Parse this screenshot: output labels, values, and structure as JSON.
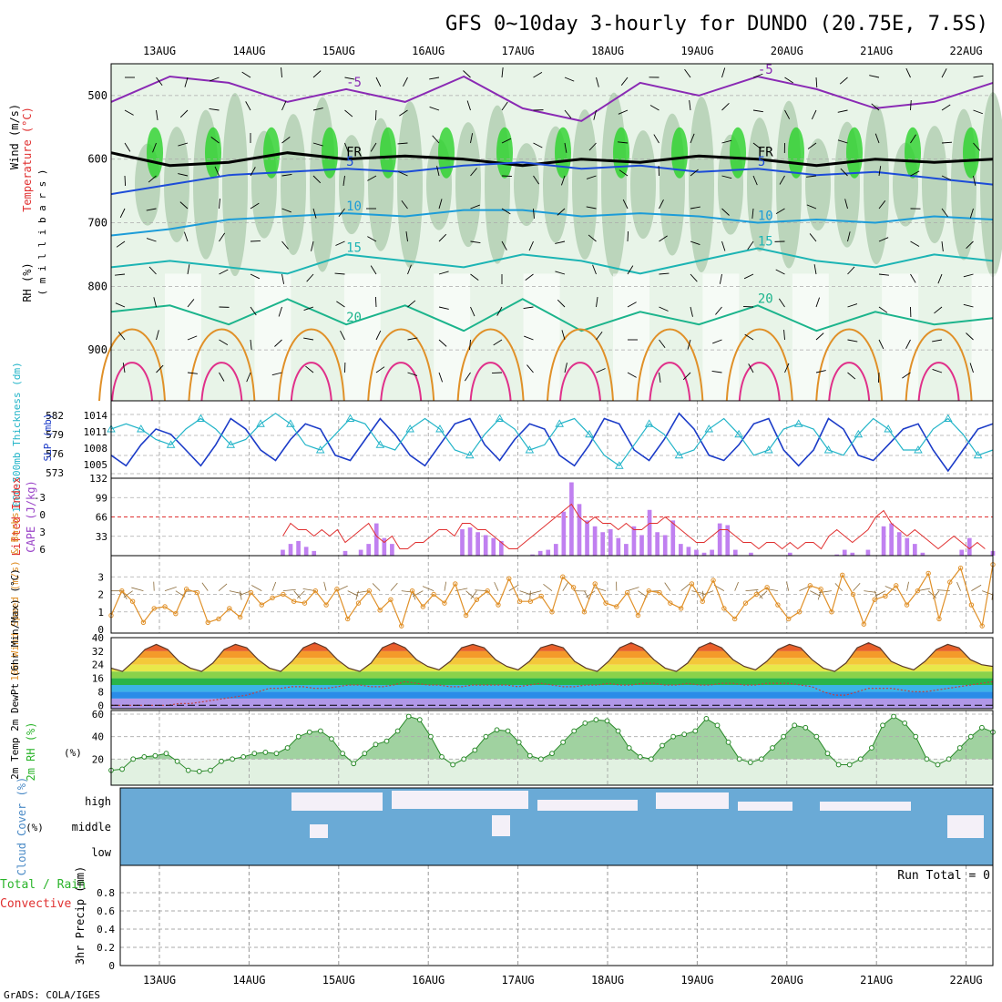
{
  "title": "GFS 0~10day 3-hourly for DUNDO (20.75E, 7.5S)",
  "credit": "GrADS: COLA/IGES",
  "dates": [
    "13AUG",
    "14AUG",
    "15AUG",
    "16AUG",
    "17AUG",
    "18AUG",
    "19AUG",
    "20AUG",
    "21AUG",
    "22AUG"
  ],
  "colors": {
    "purple": "#9a44c8",
    "red": "#e03030",
    "green": "#2ab42a",
    "orange": "#e09028",
    "cyan": "#22b4c8",
    "blue": "#1c3cc8",
    "cloud": "#6aaad6",
    "brown": "#8b6b3a",
    "black": "#000000"
  },
  "chart_data": [
    {
      "type": "contour",
      "name": "upper",
      "legend": {
        "rh": "RH (%)",
        "temp": "Temperature (°C)",
        "wind": "Wind (m/s)",
        "unit": "( m i l l i b a r s )"
      },
      "ylabel": "millibars",
      "ylim": [
        980,
        450
      ],
      "yticks": [
        500,
        600,
        700,
        800,
        900
      ],
      "isotherms": [
        {
          "label": "-5",
          "color": "#8a2ab4",
          "p": [
            510,
            470,
            480,
            510,
            490,
            510,
            470,
            520,
            540,
            480,
            500,
            470,
            490,
            520,
            510,
            480
          ]
        },
        {
          "label": "FR",
          "color": "#000000",
          "p": [
            590,
            610,
            605,
            590,
            600,
            595,
            600,
            610,
            600,
            605,
            595,
            600,
            610,
            600,
            605,
            600
          ]
        },
        {
          "label": "5",
          "color": "#1c4cd8",
          "p": [
            655,
            640,
            625,
            620,
            615,
            620,
            610,
            605,
            615,
            610,
            620,
            615,
            625,
            620,
            630,
            640
          ]
        },
        {
          "label": "10",
          "color": "#1c9cd8",
          "p": [
            720,
            710,
            695,
            690,
            685,
            690,
            680,
            680,
            690,
            685,
            690,
            700,
            695,
            700,
            690,
            695
          ]
        },
        {
          "label": "15",
          "color": "#1cb4b4",
          "p": [
            770,
            760,
            770,
            780,
            750,
            760,
            770,
            750,
            760,
            780,
            760,
            740,
            760,
            770,
            750,
            760
          ]
        },
        {
          "label": "20",
          "color": "#1cb48c",
          "p": [
            840,
            830,
            860,
            820,
            860,
            830,
            870,
            820,
            870,
            840,
            860,
            830,
            870,
            840,
            860,
            850
          ]
        }
      ],
      "isotherm_labels": [
        "-5",
        "-5",
        "-5",
        "FR",
        "FR",
        "5",
        "5",
        "10",
        "10",
        "15",
        "15",
        "20",
        "20"
      ]
    },
    {
      "type": "line",
      "name": "slp-thickness",
      "ylabel_left": "1000-500mb Thickness (dm)",
      "ylabel_right": "SLP (mb)",
      "left_ticks": [
        "582",
        "579",
        "576",
        "573"
      ],
      "right_ticks": [
        "1014",
        "1011",
        "1008",
        "1005"
      ],
      "ylim": [
        1004,
        1016
      ],
      "series": [
        {
          "name": "SLP",
          "values": [
            1007,
            1005,
            1009,
            1012,
            1011,
            1008,
            1005,
            1009,
            1014,
            1012,
            1008,
            1006,
            1010,
            1013,
            1012,
            1007,
            1006,
            1010,
            1014,
            1011,
            1007,
            1005,
            1009,
            1013,
            1014,
            1009,
            1006,
            1010,
            1013,
            1012,
            1007,
            1005,
            1009,
            1014,
            1013,
            1008,
            1006,
            1010,
            1015,
            1012,
            1007,
            1006,
            1009,
            1013,
            1014,
            1008,
            1005,
            1008,
            1014,
            1012,
            1007,
            1006,
            1009,
            1012,
            1013,
            1008,
            1004,
            1008,
            1012,
            1013
          ]
        },
        {
          "name": "Thickness",
          "values": [
            1012,
            1013,
            1012,
            1010,
            1009,
            1012,
            1014,
            1012,
            1009,
            1010,
            1013,
            1015,
            1013,
            1009,
            1008,
            1011,
            1014,
            1013,
            1009,
            1008,
            1012,
            1014,
            1012,
            1008,
            1007,
            1011,
            1014,
            1012,
            1008,
            1009,
            1013,
            1014,
            1011,
            1007,
            1005,
            1009,
            1013,
            1011,
            1007,
            1008,
            1012,
            1014,
            1011,
            1007,
            1008,
            1012,
            1013,
            1012,
            1008,
            1007,
            1011,
            1014,
            1012,
            1008,
            1008,
            1012,
            1014,
            1011,
            1007,
            1008
          ]
        }
      ]
    },
    {
      "type": "bar",
      "name": "cape-lifted",
      "ylabel_left": "Lifted Index",
      "ylabel_right": "CAPE (J/kg)",
      "left_ticks": [
        "-3",
        "0",
        "3",
        "6"
      ],
      "right_ticks": [
        "132",
        "99",
        "66",
        "33"
      ],
      "ylim": [
        0,
        132
      ],
      "values": [
        0,
        0,
        0,
        0,
        0,
        0,
        0,
        0,
        0,
        0,
        0,
        0,
        0,
        0,
        0,
        0,
        0,
        0,
        0,
        0,
        0,
        0,
        10,
        20,
        25,
        15,
        8,
        0,
        0,
        0,
        8,
        0,
        10,
        20,
        55,
        30,
        20,
        0,
        0,
        0,
        0,
        0,
        0,
        0,
        0,
        45,
        48,
        40,
        35,
        30,
        25,
        0,
        0,
        0,
        2,
        8,
        10,
        20,
        75,
        125,
        88,
        60,
        50,
        40,
        45,
        30,
        20,
        50,
        35,
        78,
        40,
        35,
        60,
        20,
        15,
        10,
        5,
        10,
        55,
        52,
        10,
        0,
        5,
        0,
        0,
        0,
        0,
        5,
        0,
        0,
        0,
        0,
        0,
        2,
        10,
        5,
        0,
        10,
        0,
        50,
        55,
        40,
        30,
        20,
        5,
        0,
        0,
        0,
        0,
        10,
        30,
        0,
        0,
        8
      ],
      "lifted_index": [
        6,
        6,
        6,
        6,
        6,
        6,
        6,
        6,
        6,
        6,
        6,
        6,
        6,
        6,
        6,
        6,
        6,
        6,
        6,
        6,
        6,
        6,
        3,
        1,
        2,
        2,
        3,
        2,
        3,
        2,
        4,
        3,
        2,
        1,
        3,
        4,
        3,
        5,
        5,
        4,
        4,
        3,
        2,
        2,
        3,
        1,
        1,
        2,
        2,
        3,
        4,
        5,
        5,
        4,
        3,
        2,
        1,
        0,
        -1,
        -2,
        0,
        1,
        0,
        1,
        1,
        2,
        1,
        2,
        2,
        1,
        1,
        0,
        1,
        2,
        3,
        4,
        4,
        3,
        2,
        2,
        3,
        4,
        4,
        5,
        4,
        4,
        5,
        4,
        5,
        4,
        4,
        5,
        3,
        2,
        3,
        4,
        3,
        2,
        0,
        -1,
        1,
        2,
        3,
        2,
        3,
        4,
        5,
        4,
        3,
        4,
        5,
        4,
        5,
        6
      ]
    },
    {
      "type": "line",
      "name": "wind10m",
      "ylabel": "10m Wind Speed (m/s) & Barbs",
      "yticks": [
        "3",
        "2",
        "1",
        "0"
      ],
      "ylim": [
        0,
        4
      ],
      "values": [
        0.8,
        2.2,
        1.6,
        0.4,
        1.2,
        1.3,
        0.9,
        2.3,
        2.1,
        0.4,
        0.6,
        1.2,
        0.7,
        2.1,
        1.4,
        1.8,
        2.0,
        1.6,
        1.5,
        2.2,
        1.4,
        2.3,
        0.6,
        1.5,
        2.2,
        1.1,
        1.7,
        0.2,
        2.2,
        1.3,
        2.0,
        1.5,
        2.6,
        0.8,
        1.7,
        2.2,
        1.4,
        2.9,
        1.6,
        1.6,
        1.9,
        1.0,
        3.0,
        2.4,
        1.0,
        2.6,
        1.5,
        1.3,
        2.1,
        0.8,
        2.2,
        2.1,
        1.5,
        1.2,
        2.6,
        1.6,
        2.8,
        1.2,
        0.6,
        1.5,
        2.0,
        2.4,
        1.4,
        0.6,
        1.0,
        2.5,
        2.3,
        1.0,
        3.1,
        2.0,
        0.3,
        1.7,
        1.9,
        2.5,
        1.4,
        2.2,
        3.2,
        0.6,
        2.7,
        3.5,
        1.4,
        0.2,
        3.7
      ]
    },
    {
      "type": "area",
      "name": "temp2m",
      "ylabel": "2m Temp 2m DewPt (6hr Min/Max) (°C)",
      "yticks": [
        "40",
        "32",
        "24",
        "16",
        "8",
        "0"
      ],
      "ylim": [
        -2,
        40
      ],
      "temp": [
        22,
        20,
        26,
        33,
        36,
        33,
        26,
        22,
        20,
        25,
        33,
        36,
        34,
        27,
        22,
        20,
        26,
        34,
        37,
        34,
        27,
        22,
        20,
        25,
        34,
        37,
        34,
        27,
        23,
        21,
        26,
        34,
        36,
        34,
        27,
        23,
        21,
        26,
        34,
        36,
        34,
        26,
        22,
        20,
        26,
        34,
        37,
        34,
        27,
        22,
        20,
        25,
        34,
        37,
        34,
        27,
        23,
        21,
        26,
        33,
        36,
        34,
        27,
        22,
        20,
        25,
        34,
        37,
        34,
        26,
        23,
        21,
        26,
        33,
        36,
        34,
        27,
        24,
        23
      ],
      "dewpt": [
        0,
        0,
        0,
        0,
        0,
        0,
        1,
        1,
        2,
        3,
        4,
        5,
        6,
        8,
        10,
        10,
        11,
        11,
        10,
        10,
        11,
        12,
        12,
        11,
        11,
        12,
        14,
        13,
        12,
        12,
        11,
        11,
        12,
        12,
        12,
        12,
        11,
        12,
        13,
        12,
        11,
        11,
        12,
        12,
        13,
        12,
        12,
        13,
        13,
        12,
        12,
        13,
        12,
        12,
        13,
        13,
        12,
        12,
        13,
        13,
        13,
        12,
        11,
        8,
        6,
        6,
        8,
        10,
        10,
        10,
        9,
        8,
        8,
        9,
        10,
        11,
        12,
        13,
        14
      ]
    },
    {
      "type": "area",
      "name": "rh2m",
      "ylabel": "2m RH (%)",
      "yticks": [
        "60",
        "40",
        "20"
      ],
      "ylim": [
        0,
        60
      ],
      "values": [
        10,
        11,
        20,
        22,
        23,
        25,
        18,
        10,
        9,
        10,
        18,
        20,
        22,
        25,
        26,
        25,
        30,
        40,
        44,
        45,
        38,
        25,
        16,
        25,
        33,
        36,
        45,
        58,
        55,
        40,
        22,
        15,
        20,
        28,
        40,
        46,
        45,
        35,
        23,
        20,
        25,
        35,
        45,
        52,
        55,
        54,
        45,
        30,
        22,
        20,
        32,
        40,
        42,
        45,
        56,
        50,
        35,
        20,
        17,
        20,
        30,
        40,
        50,
        48,
        40,
        25,
        15,
        15,
        20,
        30,
        50,
        58,
        52,
        40,
        20,
        15,
        20,
        30,
        40,
        48,
        44
      ]
    },
    {
      "type": "heatmap",
      "name": "cloud",
      "ylabel": "Cloud Cover (%)",
      "rows": [
        "high",
        "middle",
        "low"
      ],
      "high": [
        0,
        0,
        0,
        0,
        0,
        0,
        0,
        0,
        0,
        0,
        0,
        0,
        0,
        0,
        0,
        0,
        0,
        0,
        0,
        0,
        0,
        0,
        0,
        0,
        0,
        0,
        0,
        0,
        0,
        0,
        0,
        0,
        0,
        0,
        0,
        0,
        0,
        0,
        0,
        0,
        0,
        0,
        0,
        0,
        0,
        0,
        0,
        0,
        0,
        0,
        0,
        0,
        0,
        0,
        0,
        0,
        0,
        0,
        0,
        0,
        0,
        0,
        0,
        0,
        0,
        0,
        0,
        0,
        0,
        0,
        0,
        0,
        0,
        0,
        0,
        0,
        0,
        0,
        0,
        0
      ],
      "middle": [
        0,
        0,
        0,
        0,
        0,
        0,
        0,
        0,
        0,
        0,
        0,
        0,
        0,
        0,
        0,
        0,
        0,
        0,
        0,
        0,
        0,
        0,
        0,
        0,
        0,
        0,
        0,
        0,
        0,
        0,
        0,
        0,
        0,
        0,
        0,
        0,
        0,
        0,
        0,
        0,
        0,
        0,
        0,
        0,
        0,
        0,
        0,
        0,
        0,
        0,
        0,
        0,
        0,
        0,
        0,
        0,
        0,
        0,
        0,
        0,
        0,
        0,
        0,
        0,
        0,
        0,
        0,
        0,
        0,
        0,
        0,
        0,
        0,
        0,
        0,
        0,
        0,
        0,
        0,
        0
      ],
      "clear_high": [
        0,
        0,
        0,
        0,
        0,
        0,
        0,
        0,
        0,
        0,
        0,
        0,
        0,
        0,
        0,
        0,
        0,
        0,
        0,
        0,
        0,
        0,
        0,
        0,
        0,
        0,
        0,
        0,
        0,
        0,
        0,
        0,
        0,
        0,
        0,
        0,
        0,
        0,
        0,
        0,
        0,
        0,
        0,
        0,
        0,
        0,
        0,
        0,
        0,
        0,
        0,
        0,
        0,
        0,
        0,
        0,
        0,
        0,
        0,
        0,
        0,
        0,
        0,
        0,
        0,
        0,
        0,
        0,
        0,
        0,
        0,
        0,
        0,
        0,
        0,
        0,
        0,
        0,
        0,
        0
      ]
    },
    {
      "type": "bar",
      "name": "precip",
      "ylabel": "3hr Precip (mm)",
      "legend_total": "Total / Rain",
      "legend_conv": "Convective",
      "run_total": "Run Total = 0",
      "yticks": [
        "0.8",
        "0.6",
        "0.4",
        "0.2",
        "0"
      ],
      "ylim": [
        0,
        0.9
      ],
      "values": []
    }
  ]
}
